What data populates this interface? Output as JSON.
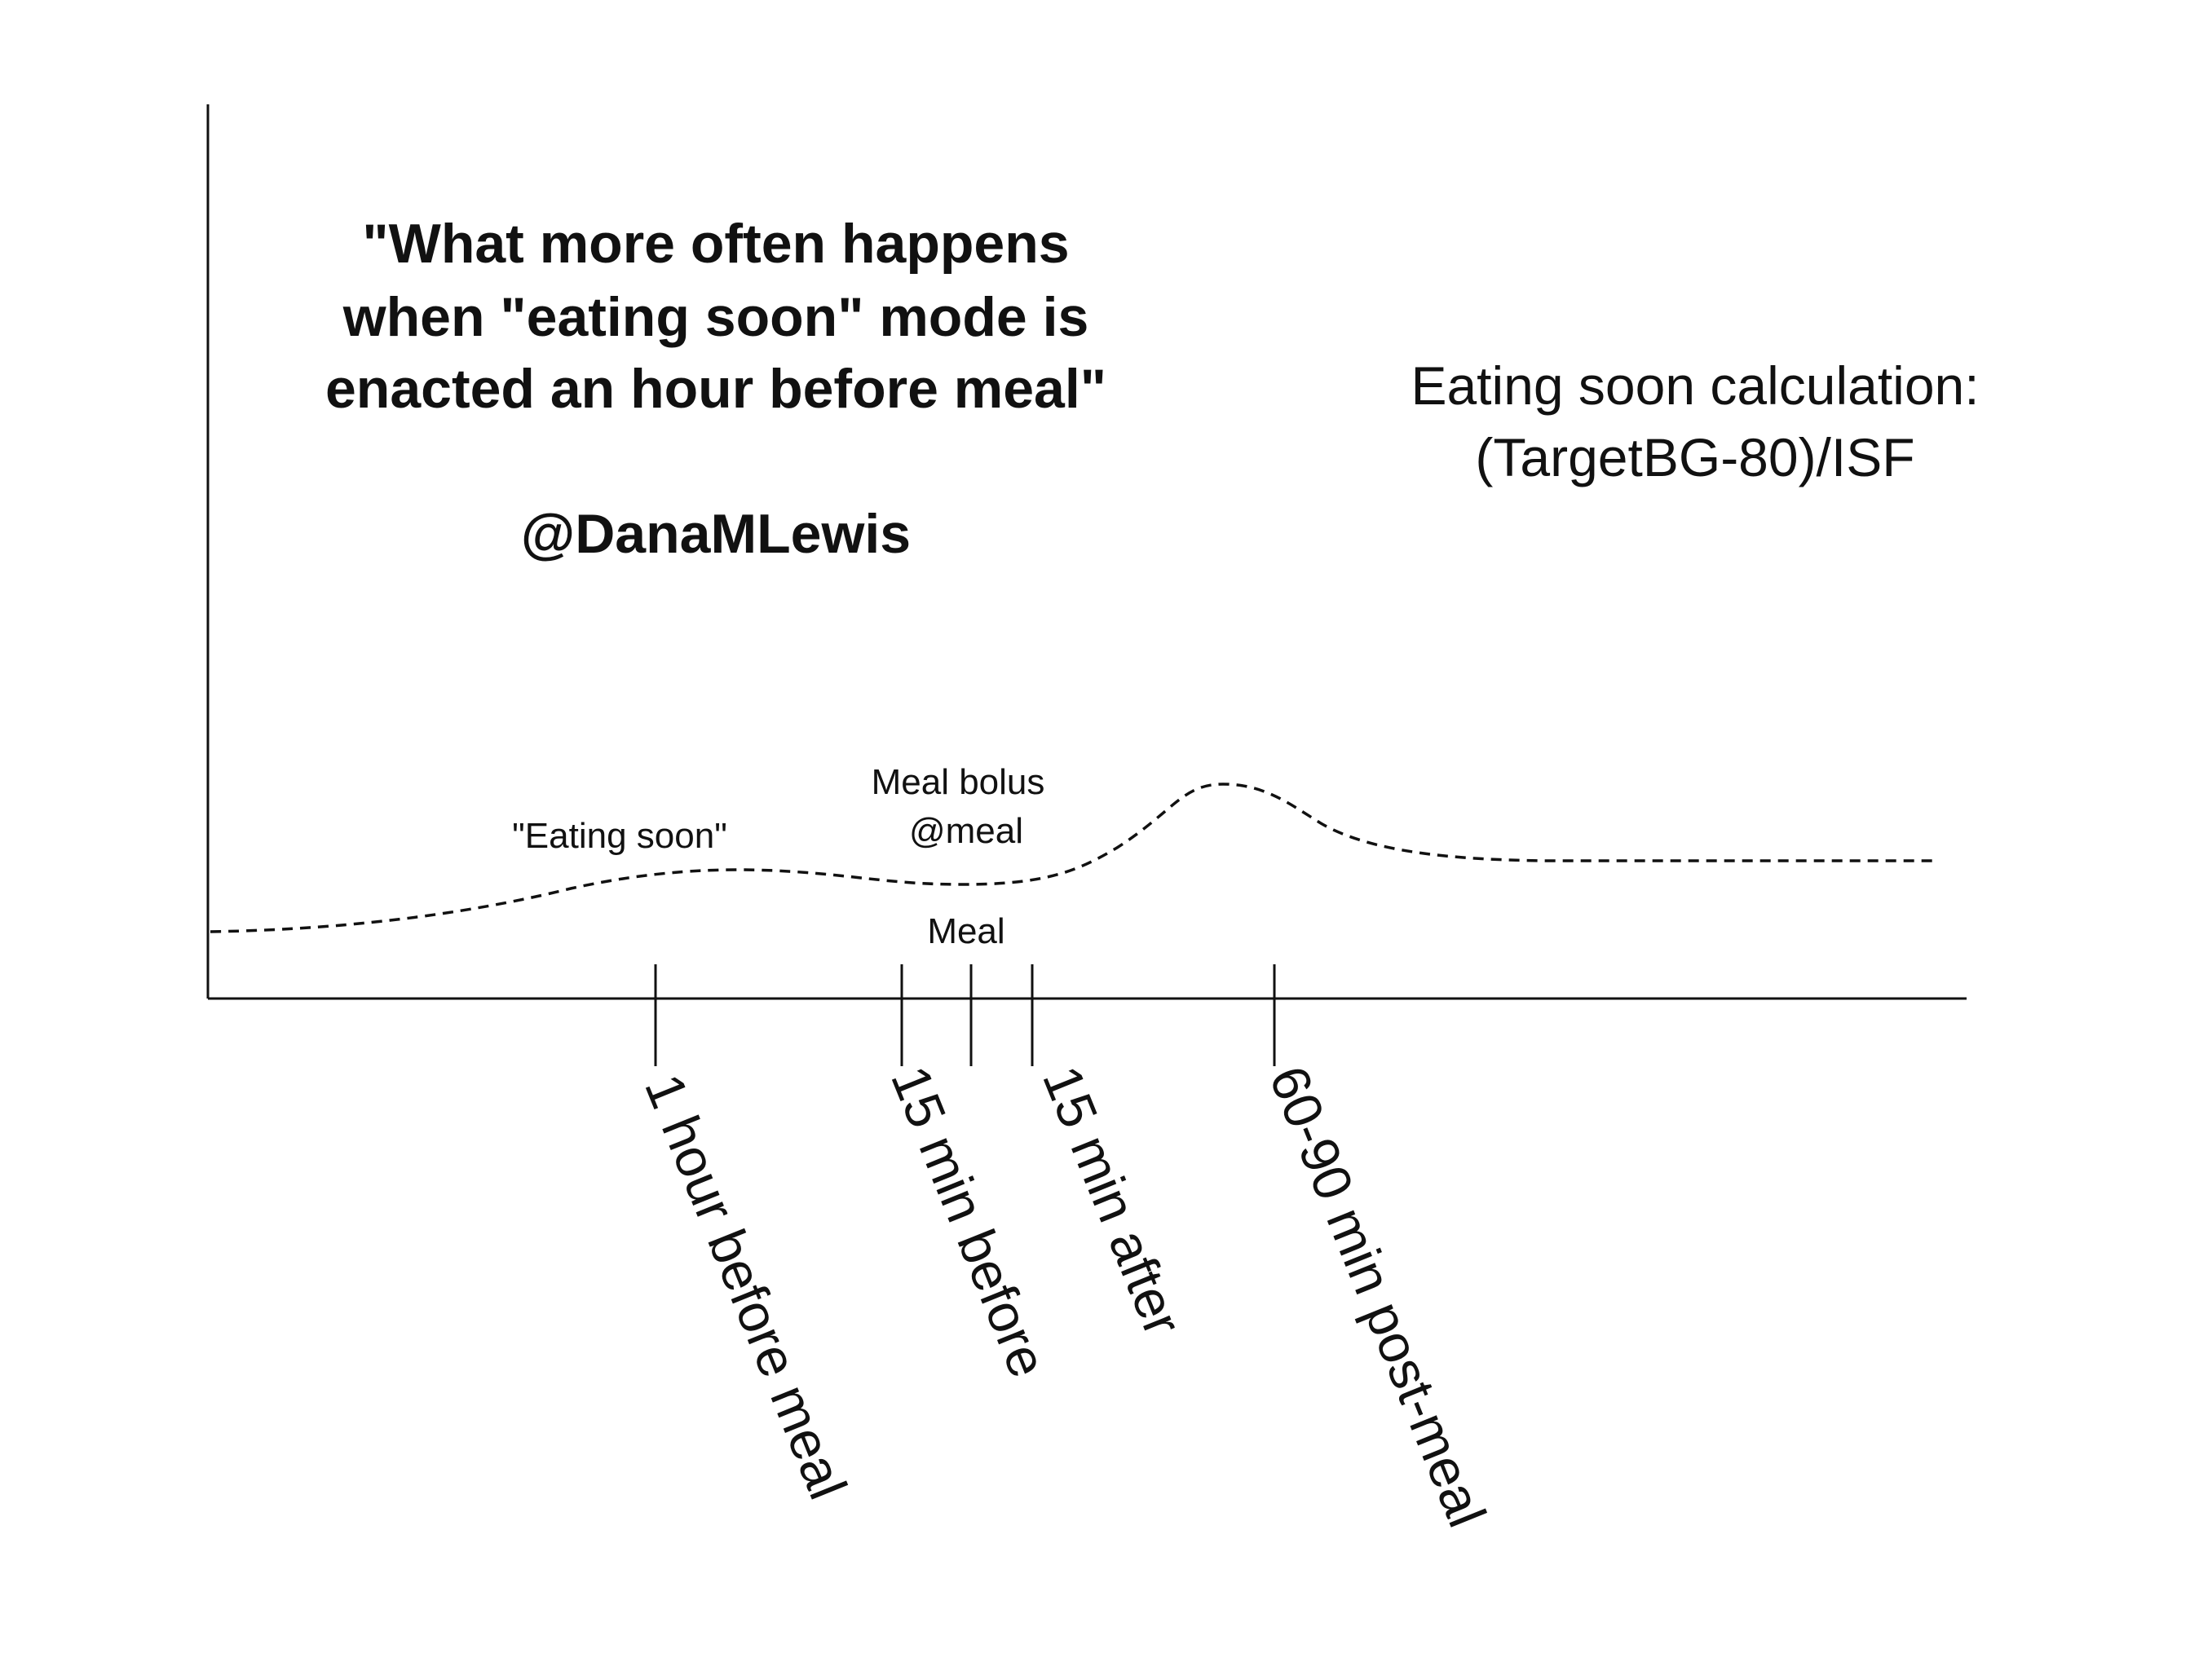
{
  "title": {
    "lines": [
      "\"What more often happens",
      "when \"eating soon\" mode is",
      "enacted an hour before meal\""
    ]
  },
  "author_handle": "@DanaMLewis",
  "calculation": {
    "lines": [
      "Eating soon calculation:",
      "(TargetBG-80)/ISF"
    ]
  },
  "annotations": {
    "eating_soon": "\"Eating soon\"",
    "meal_bolus_line1": "Meal bolus",
    "meal_bolus_line2": "@meal",
    "meal": "Meal"
  },
  "timeline_markers": [
    "1 hour before meal",
    "15 min before",
    "15 min after",
    "60-90 min post-meal"
  ],
  "colors": {
    "ink": "#111111",
    "background": "#ffffff"
  }
}
